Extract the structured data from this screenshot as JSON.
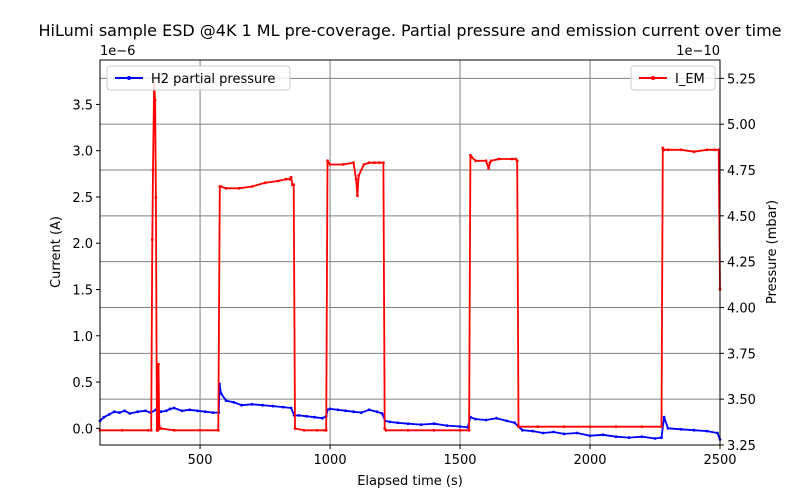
{
  "chart_data": {
    "type": "line",
    "title": "HiLumi sample ESD @4K 1 ML pre-coverage. Partial pressure and emission current over time",
    "xlabel": "Elapsed time (s)",
    "x_ticks": [
      500,
      1000,
      1500,
      2000,
      2500
    ],
    "x_tick_labels": [
      "500",
      "1000",
      "1500",
      "2000",
      "2500"
    ],
    "xlim": [
      115,
      2500
    ],
    "grid": true,
    "left_axis": {
      "label": "Current (A)",
      "offset_text": "1e−6",
      "ylim": [
        -0.18,
        3.98
      ],
      "ticks": [
        0.0,
        0.5,
        1.0,
        1.5,
        2.0,
        2.5,
        3.0,
        3.5
      ],
      "tick_labels": [
        "0.0",
        "0.5",
        "1.0",
        "1.5",
        "2.0",
        "2.5",
        "3.0",
        "3.5"
      ],
      "scale": "1e-6"
    },
    "right_axis": {
      "label": "Pressure (mbar)",
      "offset_text": "1e−10",
      "ylim": [
        3.25,
        5.35
      ],
      "ticks": [
        3.25,
        3.5,
        3.75,
        4.0,
        4.25,
        4.5,
        4.75,
        5.0,
        5.25
      ],
      "tick_labels": [
        "3.25",
        "3.50",
        "3.75",
        "4.00",
        "4.25",
        "4.50",
        "4.75",
        "5.00",
        "5.25"
      ],
      "scale": "1e-10"
    },
    "series": [
      {
        "name": "H2 partial pressure",
        "axis": "left",
        "color": "#0000ff",
        "legend_position": "upper left",
        "x": [
          115,
          130,
          150,
          170,
          190,
          210,
          230,
          260,
          290,
          310,
          330,
          350,
          370,
          385,
          400,
          430,
          460,
          490,
          520,
          550,
          572,
          575,
          580,
          600,
          630,
          660,
          700,
          740,
          780,
          820,
          850,
          862,
          880,
          910,
          940,
          970,
          985,
          990,
          1000,
          1030,
          1060,
          1090,
          1120,
          1150,
          1180,
          1200,
          1212,
          1230,
          1260,
          1300,
          1350,
          1400,
          1450,
          1500,
          1530,
          1540,
          1560,
          1600,
          1640,
          1680,
          1710,
          1725,
          1740,
          1780,
          1820,
          1860,
          1900,
          1950,
          2000,
          2050,
          2100,
          2150,
          2200,
          2250,
          2275,
          2285,
          2300,
          2350,
          2400,
          2450,
          2490,
          2500
        ],
        "values": [
          0.08,
          0.12,
          0.15,
          0.18,
          0.17,
          0.19,
          0.16,
          0.18,
          0.19,
          0.17,
          0.2,
          0.18,
          0.19,
          0.21,
          0.22,
          0.19,
          0.2,
          0.19,
          0.18,
          0.17,
          0.17,
          0.48,
          0.38,
          0.3,
          0.28,
          0.25,
          0.26,
          0.25,
          0.24,
          0.23,
          0.22,
          0.14,
          0.14,
          0.13,
          0.12,
          0.11,
          0.13,
          0.2,
          0.21,
          0.2,
          0.19,
          0.18,
          0.17,
          0.2,
          0.18,
          0.16,
          0.08,
          0.07,
          0.06,
          0.05,
          0.04,
          0.05,
          0.03,
          0.02,
          0.01,
          0.12,
          0.1,
          0.09,
          0.11,
          0.08,
          0.06,
          0.02,
          -0.02,
          -0.03,
          -0.05,
          -0.04,
          -0.06,
          -0.05,
          -0.08,
          -0.07,
          -0.09,
          -0.1,
          -0.09,
          -0.11,
          -0.1,
          0.12,
          0.0,
          -0.01,
          -0.02,
          -0.03,
          -0.05,
          -0.12
        ]
      },
      {
        "name": "I_EM",
        "axis": "right",
        "color": "#ff0000",
        "legend_position": "upper right",
        "x": [
          115,
          200,
          300,
          312,
          316,
          319,
          323,
          327,
          330,
          334,
          338,
          340,
          343,
          346,
          350,
          400,
          500,
          570,
          576,
          580,
          600,
          650,
          700,
          750,
          800,
          830,
          845,
          850,
          855,
          860,
          865,
          900,
          950,
          980,
          985,
          990,
          1000,
          1050,
          1090,
          1100,
          1105,
          1110,
          1130,
          1150,
          1170,
          1190,
          1205,
          1210,
          1215,
          1300,
          1400,
          1500,
          1535,
          1540,
          1545,
          1560,
          1600,
          1610,
          1615,
          1620,
          1650,
          1700,
          1715,
          1720,
          1725,
          1800,
          1900,
          2000,
          2100,
          2200,
          2275,
          2280,
          2285,
          2300,
          2350,
          2400,
          2450,
          2480,
          2495,
          2500
        ],
        "values": [
          3.33,
          3.33,
          3.33,
          3.33,
          4.37,
          4.75,
          5.22,
          5.13,
          4.6,
          3.33,
          3.33,
          3.69,
          3.35,
          3.34,
          3.34,
          3.33,
          3.33,
          3.33,
          4.66,
          4.66,
          4.65,
          4.65,
          4.66,
          4.68,
          4.69,
          4.7,
          4.7,
          4.71,
          4.67,
          4.67,
          3.34,
          3.33,
          3.33,
          3.33,
          3.33,
          4.8,
          4.78,
          4.78,
          4.79,
          4.7,
          4.61,
          4.72,
          4.78,
          4.79,
          4.79,
          4.79,
          4.79,
          3.34,
          3.33,
          3.33,
          3.33,
          3.33,
          3.33,
          4.83,
          4.82,
          4.8,
          4.8,
          4.76,
          4.79,
          4.8,
          4.81,
          4.81,
          4.81,
          4.8,
          3.35,
          3.35,
          3.35,
          3.35,
          3.35,
          3.35,
          3.35,
          4.87,
          4.86,
          4.86,
          4.86,
          4.85,
          4.86,
          4.86,
          4.86,
          4.1
        ]
      }
    ]
  }
}
